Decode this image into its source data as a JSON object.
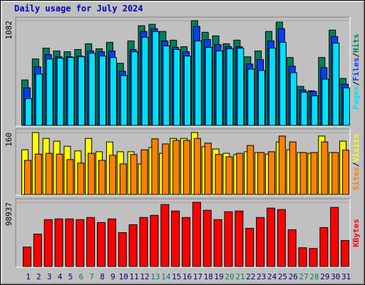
{
  "title": "Daily usage for July 2024",
  "legend_separator": "/",
  "chart_data": [
    {
      "type": "bar",
      "categories": [
        "1",
        "2",
        "3",
        "4",
        "5",
        "6",
        "7",
        "8",
        "9",
        "10",
        "11",
        "12",
        "13",
        "14",
        "15",
        "16",
        "17",
        "18",
        "19",
        "20",
        "21",
        "22",
        "23",
        "24",
        "25",
        "26",
        "27",
        "28",
        "29",
        "30",
        "31"
      ],
      "series": [
        {
          "name": "Hits",
          "color": "#00805c",
          "values": [
            474,
            689,
            800,
            771,
            763,
            786,
            845,
            793,
            860,
            645,
            874,
            1030,
            1045,
            971,
            882,
            815,
            1082,
            963,
            926,
            845,
            882,
            711,
            771,
            971,
            1067,
            704,
            408,
            363,
            704,
            985,
            489
          ]
        },
        {
          "name": "Files",
          "color": "#0040ff",
          "values": [
            393,
            608,
            734,
            711,
            711,
            719,
            771,
            763,
            771,
            563,
            786,
            971,
            1000,
            874,
            808,
            763,
            1023,
            889,
            837,
            815,
            815,
            637,
            682,
            874,
            1000,
            615,
            371,
            356,
            600,
            919,
            430
          ]
        },
        {
          "name": "Pages",
          "color": "#00e0ff",
          "values": [
            282,
            534,
            689,
            697,
            704,
            711,
            748,
            719,
            704,
            519,
            763,
            912,
            971,
            823,
            786,
            719,
            874,
            808,
            771,
            793,
            800,
            585,
            571,
            800,
            860,
            548,
            348,
            311,
            482,
            852,
            393
          ]
        }
      ],
      "ylim": [
        0,
        1082
      ],
      "yticks": [
        1082
      ]
    },
    {
      "type": "bar",
      "categories": [
        "1",
        "2",
        "3",
        "4",
        "5",
        "6",
        "7",
        "8",
        "9",
        "10",
        "11",
        "12",
        "13",
        "14",
        "15",
        "16",
        "17",
        "18",
        "19",
        "20",
        "21",
        "22",
        "23",
        "24",
        "25",
        "26",
        "27",
        "28",
        "29",
        "30",
        "31"
      ],
      "series": [
        {
          "name": "Visits",
          "color": "#ffff00",
          "values": [
            116,
            160,
            145,
            138,
            125,
            113,
            145,
            111,
            136,
            111,
            111,
            80,
            122,
            107,
            145,
            145,
            160,
            124,
            118,
            107,
            104,
            111,
            109,
            105,
            136,
            116,
            109,
            107,
            151,
            109,
            138
          ]
        },
        {
          "name": "Sites",
          "color": "#ff8000",
          "values": [
            89,
            105,
            107,
            105,
            91,
            82,
            107,
            89,
            102,
            80,
            104,
            116,
            144,
            131,
            140,
            140,
            145,
            133,
            104,
            98,
            107,
            127,
            109,
            111,
            151,
            136,
            109,
            109,
            136,
            109,
            115
          ]
        }
      ],
      "ylim": [
        0,
        160
      ],
      "yticks": [
        160
      ]
    },
    {
      "type": "bar",
      "categories": [
        "1",
        "2",
        "3",
        "4",
        "5",
        "6",
        "7",
        "8",
        "9",
        "10",
        "11",
        "12",
        "13",
        "14",
        "15",
        "16",
        "17",
        "18",
        "19",
        "20",
        "21",
        "22",
        "23",
        "24",
        "25",
        "26",
        "27",
        "28",
        "29",
        "30",
        "31"
      ],
      "tick_label_colors": [
        "#000080",
        "#000080",
        "#000080",
        "#000080",
        "#000080",
        "#008060",
        "#008060",
        "#000080",
        "#000080",
        "#000080",
        "#000080",
        "#000080",
        "#008060",
        "#008060",
        "#000080",
        "#000080",
        "#000080",
        "#000080",
        "#000080",
        "#008060",
        "#008060",
        "#000080",
        "#000080",
        "#000080",
        "#000080",
        "#000080",
        "#008060",
        "#008060",
        "#000080",
        "#000080",
        "#000080"
      ],
      "series": [
        {
          "name": "KBytes",
          "color": "#ff0000",
          "values": [
            30780,
            50560,
            72540,
            73630,
            73630,
            72540,
            75830,
            68140,
            73630,
            52750,
            64840,
            75830,
            79130,
            95610,
            85720,
            75830,
            98937,
            86820,
            72540,
            84620,
            85720,
            59350,
            75830,
            90120,
            87920,
            57150,
            29670,
            28570,
            60450,
            91220,
            40660
          ]
        }
      ],
      "ylim": [
        0,
        98937
      ],
      "yticks": [
        98937
      ]
    }
  ]
}
